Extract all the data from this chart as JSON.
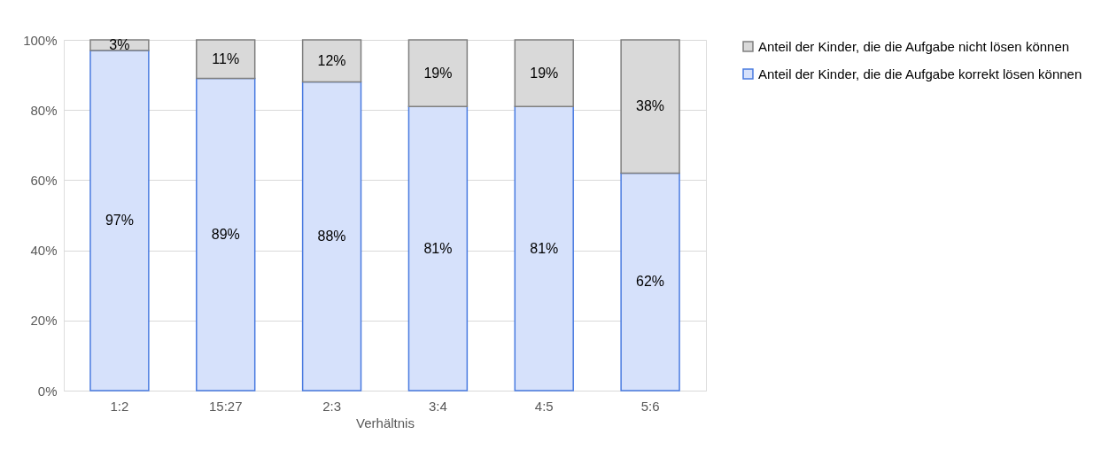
{
  "chart_data": {
    "type": "bar",
    "stacked": true,
    "xlabel": "Verhältnis",
    "categories": [
      "1:2",
      "15:27",
      "2:3",
      "3:4",
      "4:5",
      "5:6"
    ],
    "series": [
      {
        "name": "Anteil der Kinder, die die Aufgabe korrekt lösen können",
        "color": "#d6e1fb",
        "values": [
          97,
          89,
          88,
          81,
          81,
          62
        ],
        "value_labels": [
          "97%",
          "89%",
          "88%",
          "81%",
          "81%",
          "62%"
        ]
      },
      {
        "name": "Anteil der Kinder, die die Aufgabe nicht lösen können",
        "color": "#d9d9d9",
        "values": [
          3,
          11,
          12,
          19,
          19,
          38
        ],
        "value_labels": [
          "3%",
          "11%",
          "12%",
          "19%",
          "19%",
          "38%"
        ]
      }
    ],
    "ylim": [
      0,
      100
    ],
    "yticks": [
      {
        "value": 0,
        "label": "0%"
      },
      {
        "value": 20,
        "label": "20%"
      },
      {
        "value": 40,
        "label": "40%"
      },
      {
        "value": 60,
        "label": "60%"
      },
      {
        "value": 80,
        "label": "80%"
      },
      {
        "value": 100,
        "label": "100%"
      }
    ],
    "grid": "y",
    "legend": "right"
  }
}
